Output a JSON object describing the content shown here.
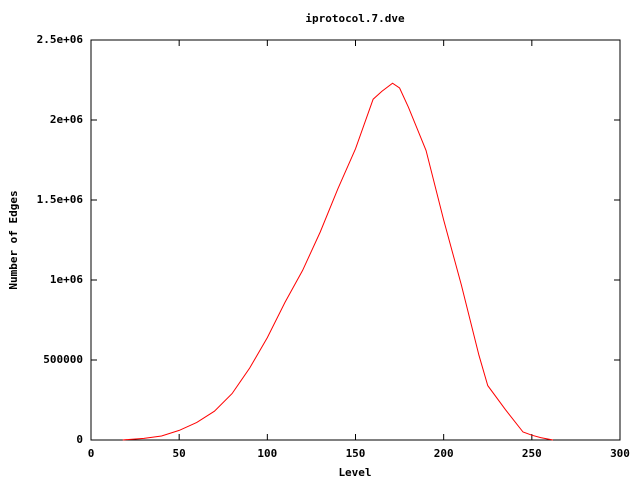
{
  "chart_data": {
    "type": "line",
    "title": "iprotocol.7.dve",
    "x_label": "Level",
    "y_label": "Number of Edges",
    "x": [
      18,
      20,
      30,
      40,
      50,
      60,
      70,
      80,
      90,
      100,
      110,
      120,
      130,
      140,
      150,
      160,
      165,
      171,
      175,
      180,
      190,
      200,
      210,
      220,
      225,
      235,
      245,
      250,
      255,
      262
    ],
    "series": [
      {
        "color": "#ff0000",
        "values": [
          0,
          2000,
          10000,
          25000,
          60000,
          110000,
          180000,
          290000,
          450000,
          640000,
          860000,
          1060000,
          1300000,
          1570000,
          1820000,
          2130000,
          2180000,
          2230000,
          2200000,
          2080000,
          1810000,
          1375000,
          970000,
          530000,
          340000,
          190000,
          50000,
          30000,
          15000,
          0
        ]
      }
    ],
    "xlim": [
      0,
      300
    ],
    "xticks": [
      0,
      50,
      100,
      150,
      200,
      250,
      300
    ],
    "ylim": [
      0,
      2500000
    ],
    "yticks": [
      0,
      500000,
      {
        "value": 1000000,
        "label": "1e+06"
      },
      {
        "value": 1500000,
        "label": "1.5e+06"
      },
      {
        "value": 2000000,
        "label": "2e+06"
      },
      {
        "value": 2500000,
        "label": "2.5e+06"
      }
    ]
  }
}
